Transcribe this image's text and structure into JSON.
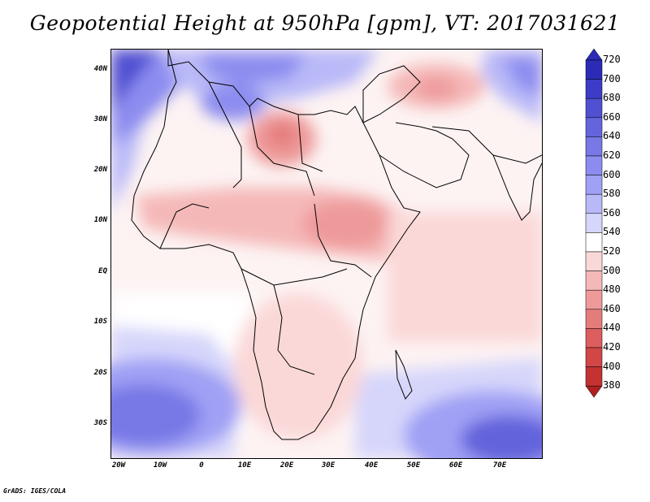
{
  "title": "Geopotential Height at 950hPa [gpm], VT: 2017031621",
  "footer": "GrADS: IGES/COLA",
  "axes": {
    "lat_ticks": [
      "40N",
      "30N",
      "20N",
      "10N",
      "EQ",
      "10S",
      "20S",
      "30S"
    ],
    "lon_ticks": [
      "20W",
      "10W",
      "0",
      "10E",
      "20E",
      "30E",
      "40E",
      "50E",
      "60E",
      "70E"
    ]
  },
  "colorbar": {
    "levels": [
      "720",
      "700",
      "680",
      "660",
      "640",
      "620",
      "600",
      "580",
      "560",
      "540",
      "520",
      "500",
      "480",
      "460",
      "440",
      "420",
      "400",
      "380"
    ],
    "colors": [
      "#2b2bb8",
      "#3c3cc8",
      "#5050d2",
      "#6464dc",
      "#7878e6",
      "#8c8cf0",
      "#a0a0f5",
      "#b9b9f8",
      "#d6d6fb",
      "#ffffff",
      "#fbd8d8",
      "#f5b8b8",
      "#ee9a9a",
      "#e57c7c",
      "#dc5e5e",
      "#d24646",
      "#c43232",
      "#b02020"
    ]
  }
}
